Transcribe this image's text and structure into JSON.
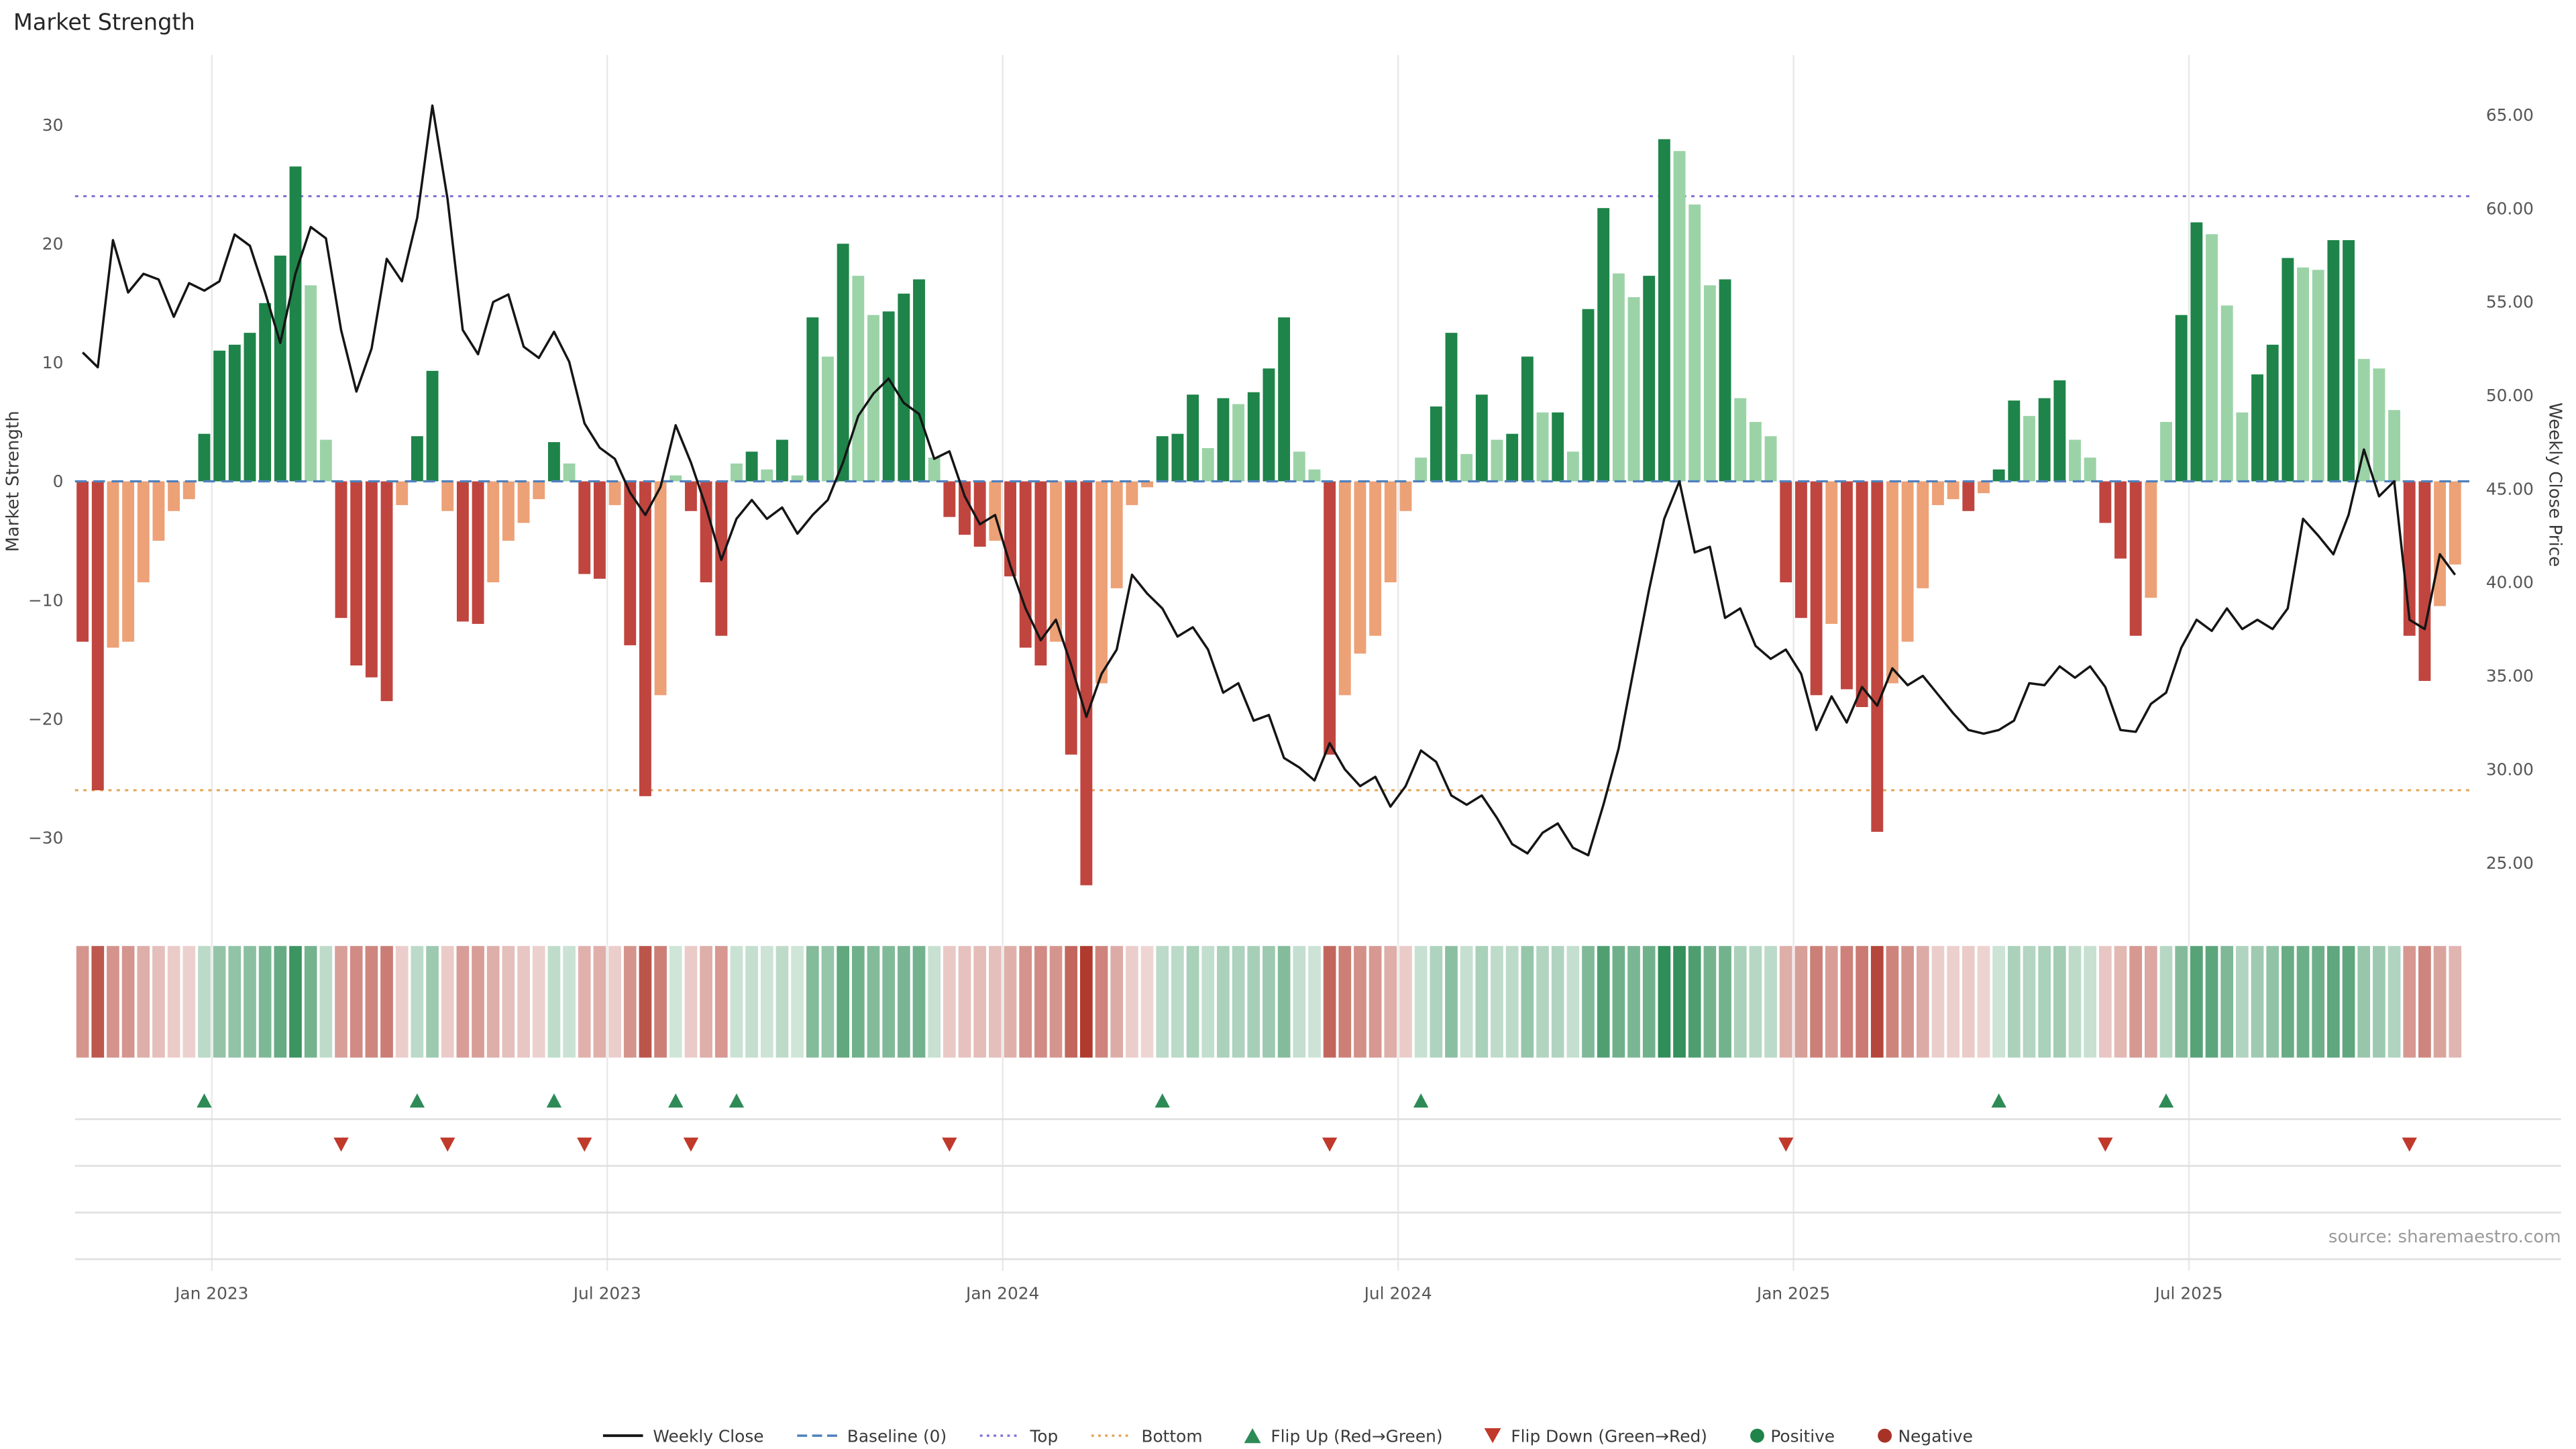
{
  "title": "Market Strength",
  "source": "source: sharemaestro.com",
  "colors": {
    "line": "#151515",
    "baseline": "#4f81bd",
    "top": "#8470d8",
    "bottom": "#e3a455",
    "pos_dark": "#1e8449",
    "pos_light": "#9bd3a7",
    "neg_dark": "#c0453f",
    "neg_light": "#eda177",
    "flip_up": "#2e8b57",
    "flip_down": "#c0392b",
    "heat_pos": "#1d8348",
    "heat_neg": "#b03a2e",
    "grid": "#e9e9e9",
    "lane_line": "#dedede",
    "tick_text": "#555555"
  },
  "legend": {
    "items": [
      {
        "label": "Weekly Close",
        "type": "line",
        "color": "#151515"
      },
      {
        "label": "Baseline (0)",
        "type": "dashed",
        "color": "#4f81bd"
      },
      {
        "label": "Top",
        "type": "dotted",
        "color": "#8470d8"
      },
      {
        "label": "Bottom",
        "type": "dotted",
        "color": "#e3a455"
      },
      {
        "label": "Flip Up (Red→Green)",
        "type": "triangle-up",
        "color": "#2e8b57"
      },
      {
        "label": "Flip Down (Green→Red)",
        "type": "triangle-down",
        "color": "#c0392b"
      },
      {
        "label": "Positive",
        "type": "dot",
        "color": "#1e8449"
      },
      {
        "label": "Negative",
        "type": "dot",
        "color": "#a93226"
      }
    ]
  },
  "chart_data": {
    "type": "bar",
    "title": "Market Strength",
    "x_start_date": "2022-10-31",
    "x_frequency": "weekly",
    "xticks": [
      {
        "label": "Jan 2023",
        "week": 9
      },
      {
        "label": "Jul 2023",
        "week": 35
      },
      {
        "label": "Jan 2024",
        "week": 61
      },
      {
        "label": "Jul 2024",
        "week": 87
      },
      {
        "label": "Jan 2025",
        "week": 113
      },
      {
        "label": "Jul 2025",
        "week": 139
      }
    ],
    "left_axis": {
      "label": "Market Strength",
      "range": [
        -35.9,
        35.9
      ],
      "ticks": [
        {
          "v": 30,
          "label": "30"
        },
        {
          "v": 20,
          "label": "20"
        },
        {
          "v": 10,
          "label": "10"
        },
        {
          "v": 0,
          "label": "0"
        },
        {
          "v": -10,
          "label": "−10"
        },
        {
          "v": -20,
          "label": "−20"
        },
        {
          "v": -30,
          "label": "−30"
        }
      ]
    },
    "right_axis": {
      "label": "Weekly Close Price",
      "range": [
        23.5,
        68.2
      ],
      "ticks": [
        {
          "v": 65,
          "label": "65.00"
        },
        {
          "v": 60,
          "label": "60.00"
        },
        {
          "v": 55,
          "label": "55.00"
        },
        {
          "v": 50,
          "label": "50.00"
        },
        {
          "v": 45,
          "label": "45.00"
        },
        {
          "v": 40,
          "label": "40.00"
        },
        {
          "v": 35,
          "label": "35.00"
        },
        {
          "v": 30,
          "label": "30.00"
        },
        {
          "v": 25,
          "label": "25.00"
        }
      ]
    },
    "reference_lines": {
      "baseline": {
        "label": "Baseline (0)",
        "value": 0
      },
      "top": {
        "label": "Top",
        "value": 24
      },
      "bottom": {
        "label": "Bottom",
        "value": -26
      }
    },
    "flip_up_weeks": [
      8,
      22,
      31,
      39,
      43,
      71,
      88,
      126,
      137
    ],
    "flip_down_weeks": [
      17,
      24,
      33,
      40,
      57,
      82,
      112,
      133,
      153
    ],
    "series": [
      {
        "name": "Market Strength",
        "type": "bar",
        "axis": "left",
        "values": [
          -13.5,
          -26,
          -14,
          -13.5,
          -8.5,
          -5,
          -2.5,
          -1.5,
          4,
          11,
          11.5,
          12.5,
          15,
          19,
          26.5,
          16.5,
          3.5,
          -11.5,
          -15.5,
          -16.5,
          -18.5,
          -2,
          3.8,
          9.3,
          -2.5,
          -11.8,
          -12,
          -8.5,
          -5,
          -3.5,
          -1.5,
          3.3,
          1.5,
          -7.8,
          -8.2,
          -2,
          -13.8,
          -26.5,
          -18,
          0.5,
          -2.5,
          -8.5,
          -13,
          1.5,
          2.5,
          1,
          3.5,
          0.5,
          13.8,
          10.5,
          20,
          17.3,
          14,
          14.3,
          15.8,
          17,
          2,
          -3,
          -4.5,
          -5.5,
          -5,
          -8,
          -14,
          -15.5,
          -13.5,
          -23,
          -34,
          -17,
          -9,
          -2,
          -0.5,
          3.8,
          4,
          7.3,
          2.8,
          7,
          6.5,
          7.5,
          9.5,
          13.8,
          2.5,
          1,
          -23,
          -18,
          -14.5,
          -13,
          -8.5,
          -2.5,
          2,
          6.3,
          12.5,
          2.3,
          7.3,
          3.5,
          4,
          10.5,
          5.8,
          5.8,
          2.5,
          14.5,
          23,
          17.5,
          15.5,
          17.3,
          28.8,
          27.8,
          23.3,
          16.5,
          17,
          7,
          5,
          3.8,
          -8.5,
          -11.5,
          -18,
          -12,
          -17.5,
          -19,
          -29.5,
          -17,
          -13.5,
          -9,
          -2,
          -1.5,
          -2.5,
          -1,
          1,
          6.8,
          5.5,
          7,
          8.5,
          3.5,
          2,
          -3.5,
          -6.5,
          -13,
          -9.8,
          5,
          14,
          21.8,
          20.8,
          14.8,
          5.8,
          9,
          11.5,
          18.8,
          18,
          17.8,
          20.3,
          20.3,
          10.3,
          9.5,
          6,
          -13,
          -16.8,
          -10.5,
          -7
        ]
      },
      {
        "name": "Weekly Close",
        "type": "line",
        "axis": "right",
        "values": [
          52.3,
          51.5,
          58.3,
          55.5,
          56.5,
          56.2,
          54.2,
          56,
          55.6,
          56.1,
          58.6,
          58,
          55.5,
          52.8,
          56.5,
          59,
          58.4,
          53.5,
          50.2,
          52.5,
          57.3,
          56.1,
          59.5,
          65.5,
          60.5,
          53.5,
          52.2,
          55,
          55.4,
          52.6,
          52,
          53.4,
          51.8,
          48.5,
          47.2,
          46.6,
          44.8,
          43.6,
          45.1,
          48.4,
          46.4,
          44,
          41.2,
          43.4,
          44.4,
          43.4,
          44,
          42.6,
          43.6,
          44.4,
          46.4,
          48.9,
          50.1,
          50.9,
          49.6,
          49,
          46.6,
          47,
          44.6,
          43.1,
          43.6,
          40.9,
          38.6,
          36.9,
          38,
          35.6,
          32.8,
          35.1,
          36.4,
          40.4,
          39.4,
          38.6,
          37.1,
          37.6,
          36.4,
          34.1,
          34.6,
          32.6,
          32.9,
          30.6,
          30.1,
          29.4,
          31.4,
          30,
          29.1,
          29.6,
          28,
          29.1,
          31,
          30.4,
          28.6,
          28.1,
          28.6,
          27.4,
          26,
          25.5,
          26.6,
          27.1,
          25.8,
          25.4,
          28.1,
          31.1,
          35.4,
          39.6,
          43.4,
          45.4,
          41.6,
          41.9,
          38.1,
          38.6,
          36.6,
          35.9,
          36.4,
          35.1,
          32.1,
          33.9,
          32.5,
          34.4,
          33.4,
          35.4,
          34.5,
          35,
          34,
          33,
          32.1,
          31.9,
          32.1,
          32.6,
          34.6,
          34.5,
          35.5,
          34.9,
          35.5,
          34.4,
          32.1,
          32,
          33.5,
          34.1,
          36.5,
          38,
          37.4,
          38.6,
          37.5,
          38,
          37.5,
          38.6,
          43.4,
          42.5,
          41.5,
          43.6,
          47.1,
          44.6,
          45.4,
          38,
          37.5,
          41.5,
          40.4
        ]
      }
    ]
  }
}
